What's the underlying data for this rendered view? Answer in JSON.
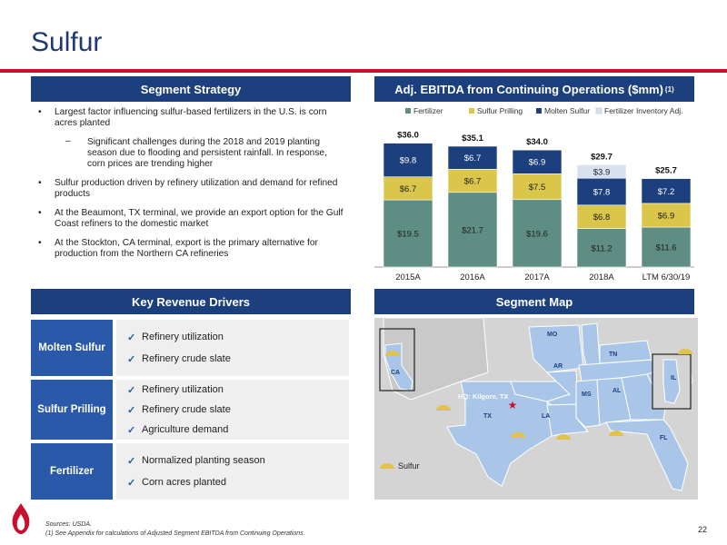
{
  "page": {
    "title": "Sulfur",
    "page_number": "22",
    "footer_line1": "Sources: USDA.",
    "footer_line2": "(1) See Appendix for calculations of Adjusted Segment EBITDA from Continuing Operations."
  },
  "headers": {
    "strategy": "Segment Strategy",
    "ebitda": "Adj. EBITDA from Continuing Operations ($mm)",
    "ebitda_note": "(1)",
    "drivers": "Key Revenue Drivers",
    "map": "Segment Map"
  },
  "strategy": {
    "b1": "Largest factor influencing sulfur-based fertilizers in the U.S. is corn acres planted",
    "b1_sub": "Significant challenges during the 2018 and 2019 planting season due to flooding and persistent rainfall.  In response, corn prices are trending higher",
    "b2": "Sulfur production driven by refinery utilization and demand for refined products",
    "b3": "At the Beaumont, TX terminal, we provide an export option for the Gulf Coast refiners to the domestic market",
    "b4": "At the Stockton, CA terminal, export is the primary alternative for production from the Northern CA refineries"
  },
  "chart_data": {
    "type": "bar",
    "stacked": true,
    "categories": [
      "2015A",
      "2016A",
      "2017A",
      "2018A",
      "LTM 6/30/19"
    ],
    "series": [
      {
        "name": "Fertilizer",
        "color": "#5e8e83",
        "values": [
          19.5,
          21.7,
          19.6,
          11.2,
          11.6
        ],
        "labels": [
          "$19.5",
          "$21.7",
          "$19.6",
          "$11.2",
          "$11.6"
        ]
      },
      {
        "name": "Sulfur Prilling",
        "color": "#d9c64a",
        "values": [
          6.7,
          6.7,
          7.5,
          6.8,
          6.9
        ],
        "labels": [
          "$6.7",
          "$6.7",
          "$7.5",
          "$6.8",
          "$6.9"
        ]
      },
      {
        "name": "Molten Sulfur",
        "color": "#1c3f7e",
        "values": [
          9.8,
          6.7,
          6.9,
          7.8,
          7.2
        ],
        "labels": [
          "$9.8",
          "$6.7",
          "$6.9",
          "$7.8",
          "$7.2"
        ]
      },
      {
        "name": "Fertilizer Inventory Adj.",
        "color": "#d8e1f0",
        "values": [
          0,
          0,
          0,
          3.9,
          0
        ],
        "labels": [
          "",
          "",
          "",
          "$3.9",
          ""
        ]
      }
    ],
    "totals": [
      "$36.0",
      "$35.1",
      "$34.0",
      "$29.7",
      "$25.7"
    ],
    "legend": "top",
    "ylim": [
      0,
      40
    ]
  },
  "drivers": [
    {
      "label": "Molten Sulfur",
      "items": [
        "Refinery utilization",
        "Refinery crude slate"
      ]
    },
    {
      "label": "Sulfur Prilling",
      "items": [
        "Refinery utilization",
        "Refinery crude slate",
        "Agriculture demand"
      ]
    },
    {
      "label": "Fertilizer",
      "items": [
        "Normalized planting season",
        "Corn acres planted"
      ]
    }
  ],
  "map": {
    "hq_label": "HQ: Kilgore, TX",
    "legend_label": "Sulfur",
    "states": {
      "ca": "CA",
      "mo": "MO",
      "ar": "AR",
      "tn": "TN",
      "il": "IL",
      "ms": "MS",
      "al": "AL",
      "tx": "TX",
      "la": "LA",
      "fl": "FL"
    },
    "colors": {
      "highlight": "#a9c6e8",
      "background": "#d4d4d4",
      "border": "#ffffff",
      "hq_star": "#c8102e",
      "marker": "#e2c24a"
    }
  }
}
